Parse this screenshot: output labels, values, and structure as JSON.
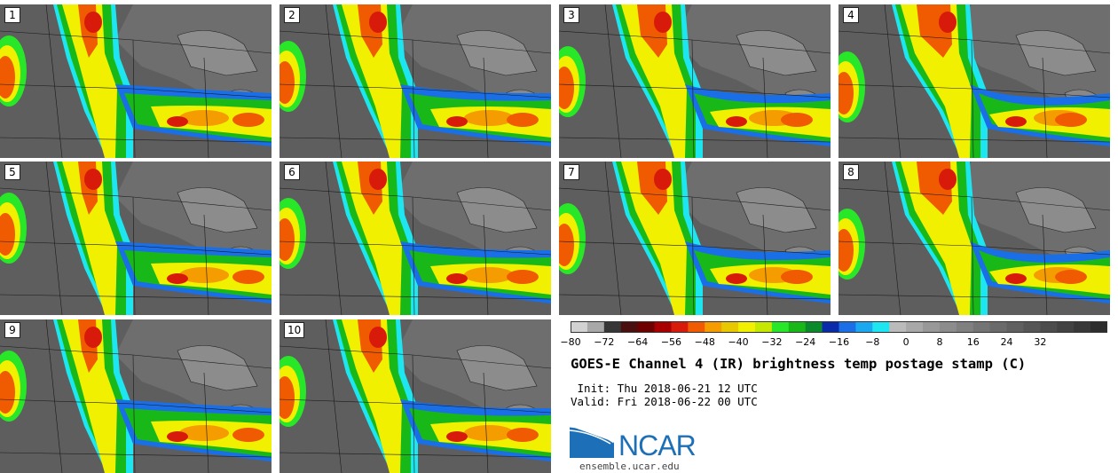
{
  "panels": [
    "1",
    "2",
    "3",
    "4",
    "5",
    "6",
    "7",
    "8",
    "9",
    "10"
  ],
  "colorbar": {
    "ticks": [
      "−80",
      "−72",
      "−64",
      "−56",
      "−48",
      "−40",
      "−32",
      "−24",
      "−16",
      "−8",
      "0",
      "8",
      "16",
      "24",
      "32"
    ],
    "colors": [
      "#d2d2d2",
      "#a8a8a8",
      "#363636",
      "#4a1010",
      "#6e0000",
      "#a80000",
      "#d81a0a",
      "#f05a00",
      "#f59c00",
      "#e8c800",
      "#f0f000",
      "#c6e800",
      "#28e628",
      "#18b818",
      "#0a8a2a",
      "#0a2aaa",
      "#1a6ee6",
      "#1aa8f0",
      "#1ee6f0",
      "#bababa",
      "#a8a8a8",
      "#989898",
      "#8c8c8c",
      "#808080",
      "#747474",
      "#6a6a6a",
      "#606060",
      "#565656",
      "#4c4c4c",
      "#424242",
      "#383838",
      "#2e2e2e"
    ]
  },
  "title": "GOES-E Channel 4 (IR) brightness temp postage stamp (C)",
  "init_line": " Init: Thu 2018-06-21 12 UTC",
  "valid_line": "Valid: Fri 2018-06-22 00 UTC",
  "logo_text": "NCAR",
  "site": "ensemble.ucar.edu"
}
